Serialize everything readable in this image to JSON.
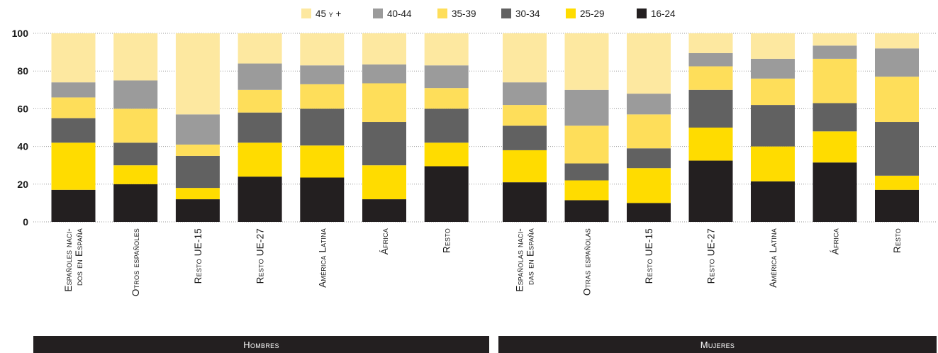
{
  "chart_data": {
    "type": "bar",
    "stacked": true,
    "ylim": [
      0,
      100
    ],
    "yticks": [
      "0",
      "20",
      "40",
      "60",
      "80",
      "100"
    ],
    "grid": true,
    "legend_position": "top-center",
    "legend": [
      {
        "name": "45 y +",
        "color": "#fde8a0"
      },
      {
        "name": "40-44",
        "color": "#9b9b9b"
      },
      {
        "name": "35-39",
        "color": "#fede5a"
      },
      {
        "name": "30-34",
        "color": "#616161"
      },
      {
        "name": "25-29",
        "color": "#ffdc00"
      },
      {
        "name": "16-24",
        "color": "#231f20"
      }
    ],
    "groups": [
      {
        "label": "Hombres",
        "categories": [
          [
            "Españoles naci-",
            "dos en España"
          ],
          [
            "Otros españoles"
          ],
          [
            "Resto UE-15"
          ],
          [
            "Resto UE-27"
          ],
          [
            "América Latina"
          ],
          [
            "África"
          ],
          [
            "Resto"
          ]
        ],
        "series": [
          {
            "name": "16-24",
            "values": [
              17,
              20,
              12,
              24,
              23.5,
              12,
              29.5
            ]
          },
          {
            "name": "25-29",
            "values": [
              25,
              10,
              6,
              18,
              17,
              18,
              12.5
            ]
          },
          {
            "name": "30-34",
            "values": [
              13,
              12,
              17,
              16,
              19.5,
              23,
              18
            ]
          },
          {
            "name": "35-39",
            "values": [
              11,
              18,
              6,
              12,
              13,
              20.5,
              11
            ]
          },
          {
            "name": "40-44",
            "values": [
              8,
              15,
              16,
              14,
              10,
              10,
              12
            ]
          },
          {
            "name": "45 y +",
            "values": [
              26,
              25,
              43,
              16,
              17,
              16.5,
              17
            ]
          }
        ]
      },
      {
        "label": "Mujeres",
        "categories": [
          [
            "Españolas naci-",
            "das en España"
          ],
          [
            "Otras españolas"
          ],
          [
            "Resto UE-15"
          ],
          [
            "Resto UE-27"
          ],
          [
            "América Latina"
          ],
          [
            "África"
          ],
          [
            "Resto"
          ]
        ],
        "series": [
          {
            "name": "16-24",
            "values": [
              21,
              11.5,
              10,
              32.5,
              21.5,
              31.5,
              17
            ]
          },
          {
            "name": "25-29",
            "values": [
              17,
              10.5,
              18.5,
              17.5,
              18.5,
              16.5,
              7.5
            ]
          },
          {
            "name": "30-34",
            "values": [
              13,
              9,
              10.5,
              20,
              22,
              15,
              28.5
            ]
          },
          {
            "name": "35-39",
            "values": [
              11,
              20,
              18,
              12.5,
              14,
              23.5,
              24
            ]
          },
          {
            "name": "40-44",
            "values": [
              12,
              19,
              11,
              7,
              10.5,
              7,
              15
            ]
          },
          {
            "name": "45 y +",
            "values": [
              26,
              30,
              32,
              10.5,
              13.5,
              6.5,
              8
            ]
          }
        ]
      }
    ]
  }
}
